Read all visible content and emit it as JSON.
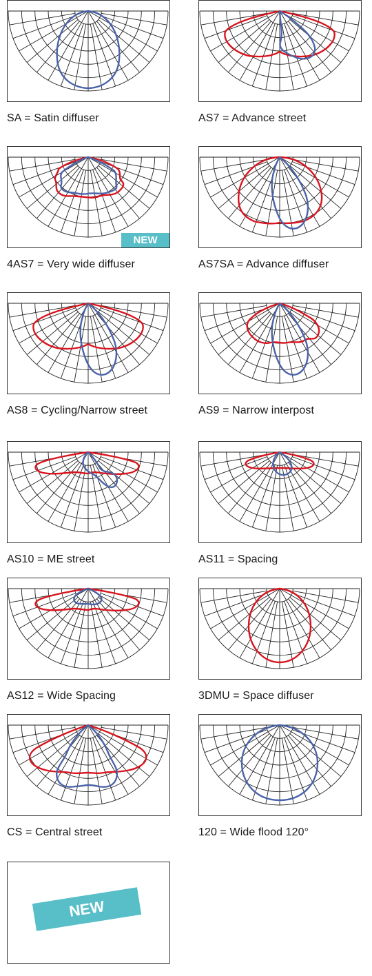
{
  "colors": {
    "grid": "#222222",
    "red": "#d9141e",
    "blue": "#4a63a8",
    "badge": "#58bec8"
  },
  "diagrams": [
    {
      "caption": "SA = Satin diffuser",
      "curves": [
        "blue-oval"
      ],
      "badge": ""
    },
    {
      "caption": "AS7 = Advance street",
      "curves": [
        "red-wide",
        "blue-lobe"
      ],
      "badge": ""
    },
    {
      "caption": "4AS7 = Very wide diffuser",
      "curves": [
        "red-wavy",
        "blue-wavy"
      ],
      "badge": "NEW"
    },
    {
      "caption": "AS7SA = Advance diffuser",
      "curves": [
        "red-big",
        "blue-lobe-long"
      ],
      "badge": ""
    },
    {
      "caption": "AS8 = Cycling/Narrow street",
      "curves": [
        "red-wide",
        "blue-lobe-long"
      ],
      "badge": ""
    },
    {
      "caption": "AS9 = Narrow interpost",
      "curves": [
        "red-wavy-mid",
        "blue-lobe-long"
      ],
      "badge": ""
    },
    {
      "caption": "AS10 = ME street",
      "curves": [
        "red-shallow",
        "blue-lobe-short"
      ],
      "badge": ""
    },
    {
      "caption": "AS11 = Spacing",
      "curves": [
        "red-shallow-narrow",
        "blue-lobe-small"
      ],
      "badge": ""
    },
    {
      "caption": "AS12 = Wide Spacing",
      "curves": [
        "red-shallow",
        "blue-small"
      ],
      "badge": ""
    },
    {
      "caption": "3DMU = Space diffuser",
      "curves": [
        "red-circle"
      ],
      "badge": ""
    },
    {
      "caption": "CS = Central street",
      "curves": [
        "red-wide-deep",
        "blue-tulip"
      ],
      "badge": ""
    },
    {
      "caption": "120 = Wide flood 120°",
      "curves": [
        "blue-circle-wide"
      ],
      "badge": ""
    }
  ],
  "placeholder": {
    "badge": "NEW"
  }
}
